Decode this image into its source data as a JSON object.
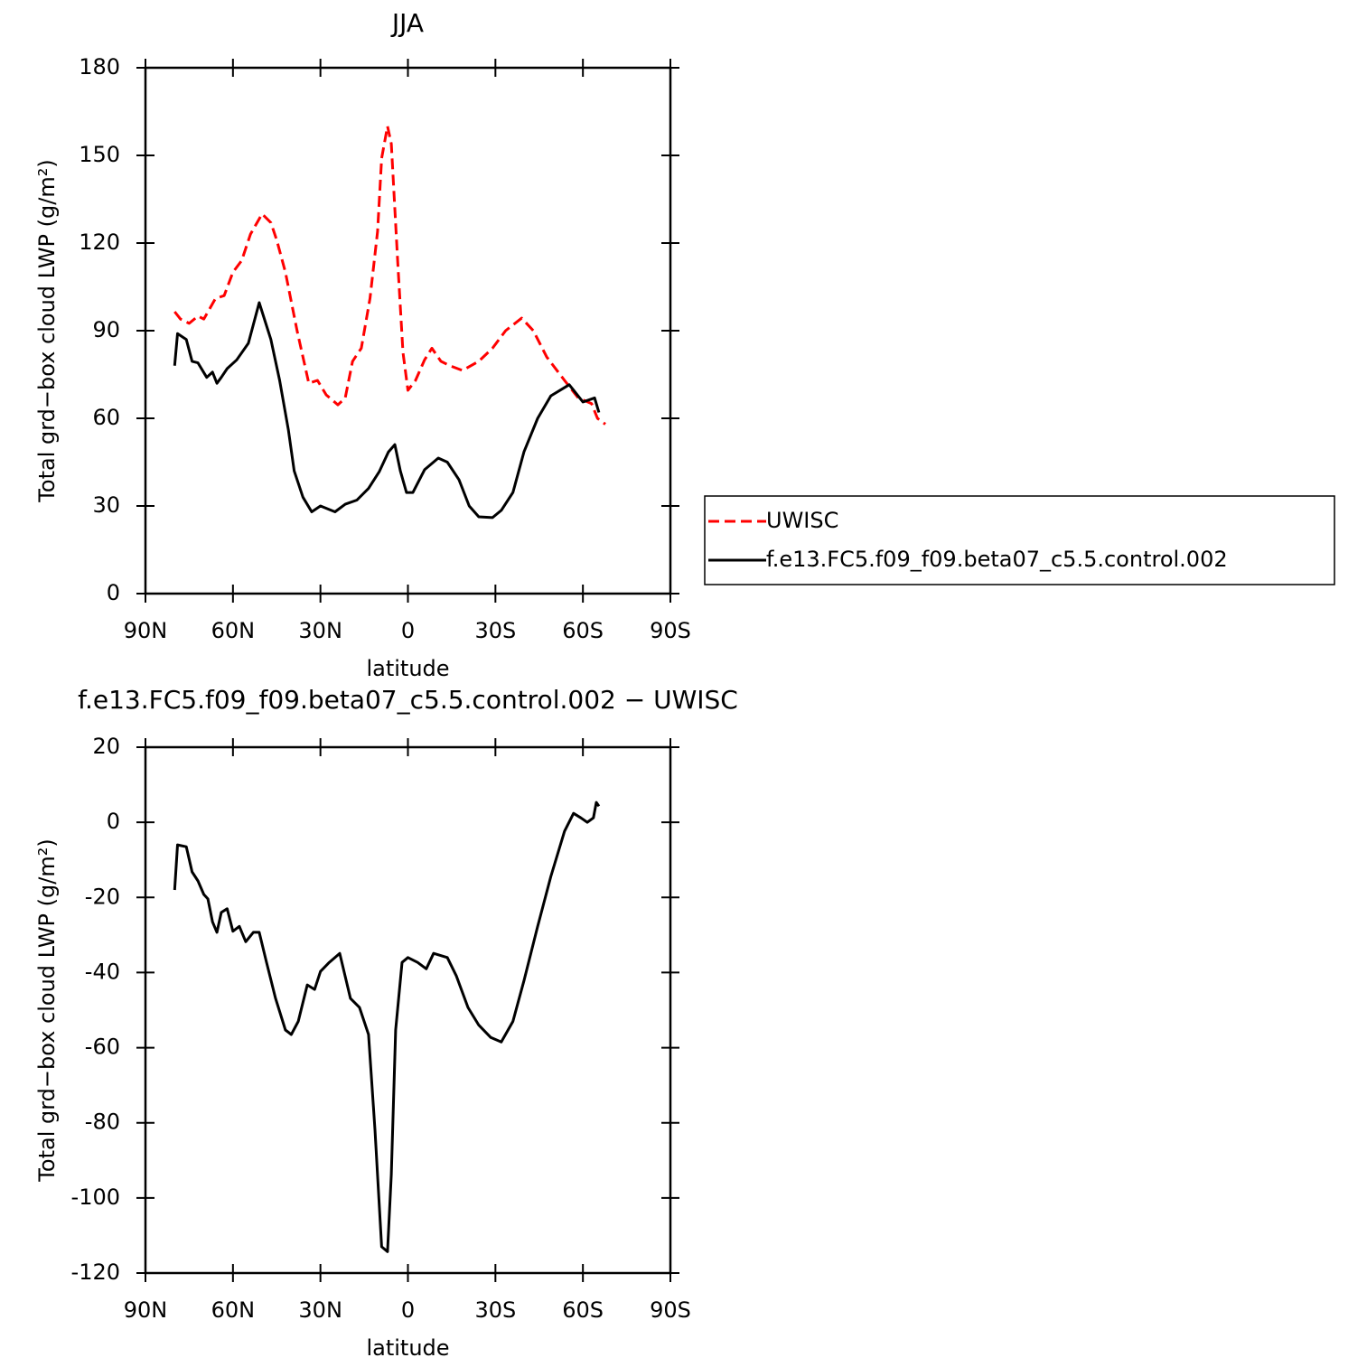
{
  "chart_data": [
    {
      "type": "line",
      "title": "JJA",
      "x_label": "latitude",
      "y_label": "Total grd−box cloud LWP (g/m²)",
      "xlim": [
        90,
        -90
      ],
      "xticks": [
        {
          "value": 90,
          "label": "90N"
        },
        {
          "value": 60,
          "label": "60N"
        },
        {
          "value": 30,
          "label": "30N"
        },
        0,
        {
          "value": -30,
          "label": "30S"
        },
        {
          "value": -60,
          "label": "60S"
        },
        {
          "value": -90,
          "label": "90S"
        }
      ],
      "ylim": [
        0,
        180
      ],
      "yticks": [
        0,
        30,
        60,
        90,
        120,
        150,
        180
      ],
      "legend": "right",
      "series": [
        {
          "name": "UWISC",
          "color": "#ff0000",
          "style": "dashed",
          "x": [
            80,
            78,
            75,
            72,
            70,
            66,
            63,
            60,
            57,
            54,
            50,
            47,
            45,
            42,
            38,
            34,
            31,
            28,
            24,
            21.5,
            19,
            16,
            13,
            10.4,
            9,
            7,
            5.7,
            3.5,
            1.7,
            0,
            -2.6,
            -5.7,
            -8.2,
            -11.3,
            -14.4,
            -18.7,
            -24.3,
            -29,
            -33.5,
            -39,
            -43,
            -47.6,
            -53.7,
            -58.4,
            -63,
            -65,
            -67.7
          ],
          "values": [
            96.5,
            94,
            92.5,
            95,
            94,
            101,
            102,
            110,
            114,
            123,
            130,
            127,
            121,
            110,
            90,
            72,
            73,
            68,
            64.6,
            67,
            79.5,
            84,
            101,
            124,
            149,
            160,
            154,
            113.5,
            82.6,
            69.6,
            73,
            80,
            84,
            79.5,
            78,
            76.4,
            79.5,
            84,
            90,
            94.3,
            90,
            81,
            73,
            67,
            65,
            60,
            58
          ]
        },
        {
          "name": "f.e13.FC5.f09_f09.beta07_c5.5.control.002",
          "color": "#000000",
          "style": "solid",
          "x": [
            80,
            79,
            76,
            74,
            72,
            69,
            67,
            65.5,
            64,
            62,
            58.7,
            54.7,
            51,
            47,
            44,
            41,
            39,
            36,
            33,
            30,
            25,
            21.5,
            17.5,
            13.5,
            9.8,
            6.7,
            4.5,
            2.6,
            0.5,
            -1.7,
            -5.7,
            -10.4,
            -13.5,
            -17.5,
            -21,
            -24.3,
            -29,
            -32,
            -36,
            -39.8,
            -44.5,
            -49,
            -55.3,
            -60,
            -64,
            -65.5
          ],
          "values": [
            78,
            89,
            87,
            79.5,
            79,
            74,
            75.8,
            72,
            74,
            77,
            80,
            85.7,
            99.6,
            87,
            73,
            56,
            42,
            33,
            28,
            30,
            28,
            30.6,
            32,
            36,
            41.8,
            48.5,
            51,
            42,
            34.6,
            34.6,
            42.4,
            46.4,
            45,
            39,
            30,
            26.3,
            26,
            28.5,
            34.6,
            48.6,
            60,
            67.7,
            71.5,
            65.6,
            67,
            62
          ]
        }
      ]
    },
    {
      "type": "line",
      "title": "f.e13.FC5.f09_f09.beta07_c5.5.control.002 − UWISC",
      "x_label": "latitude",
      "y_label": "Total grd−box cloud LWP (g/m²)",
      "xlim": [
        90,
        -90
      ],
      "xticks": [
        {
          "value": 90,
          "label": "90N"
        },
        {
          "value": 60,
          "label": "60N"
        },
        {
          "value": 30,
          "label": "30N"
        },
        0,
        {
          "value": -30,
          "label": "30S"
        },
        {
          "value": -60,
          "label": "60S"
        },
        {
          "value": -90,
          "label": "90S"
        }
      ],
      "ylim": [
        -120,
        20
      ],
      "yticks": [
        -120,
        -100,
        -80,
        -60,
        -40,
        -20,
        0,
        20
      ],
      "series": [
        {
          "color": "#000000",
          "style": "solid",
          "x": [
            80,
            79,
            76,
            74,
            72,
            70,
            68.6,
            67,
            65.5,
            64,
            62,
            60,
            57.8,
            55.6,
            53,
            51,
            48.5,
            45.4,
            42,
            40,
            37.6,
            34.5,
            32,
            30,
            27,
            23.4,
            19.7,
            16.6,
            13.5,
            11.3,
            9,
            7,
            5.7,
            4.2,
            2,
            0,
            -3.3,
            -6.3,
            -8.8,
            -13.5,
            -16.6,
            -20.6,
            -24.3,
            -28.4,
            -32,
            -36,
            -39.8,
            -44.5,
            -49,
            -53.7,
            -56.8,
            -59.3,
            -61.5,
            -63.6,
            -64.6,
            -65.5
          ],
          "values": [
            -18,
            -6,
            -6.5,
            -13.2,
            -15.6,
            -19.2,
            -20.4,
            -26.5,
            -29.3,
            -24,
            -23,
            -29,
            -27.7,
            -31.8,
            -29.3,
            -29.3,
            -37.3,
            -46.9,
            -55.3,
            -56.5,
            -53,
            -43.3,
            -44.5,
            -39.7,
            -37.3,
            -34.9,
            -46.9,
            -49.3,
            -56.5,
            -81.8,
            -113,
            -114.3,
            -93.8,
            -55.3,
            -37.3,
            -36,
            -37.3,
            -39,
            -34.9,
            -36,
            -40.9,
            -49.3,
            -54,
            -57.3,
            -58.5,
            -53,
            -42.1,
            -27.7,
            -14.4,
            -2.4,
            2.4,
            1.2,
            0,
            1.2,
            5.3,
            4.3
          ]
        }
      ]
    }
  ]
}
